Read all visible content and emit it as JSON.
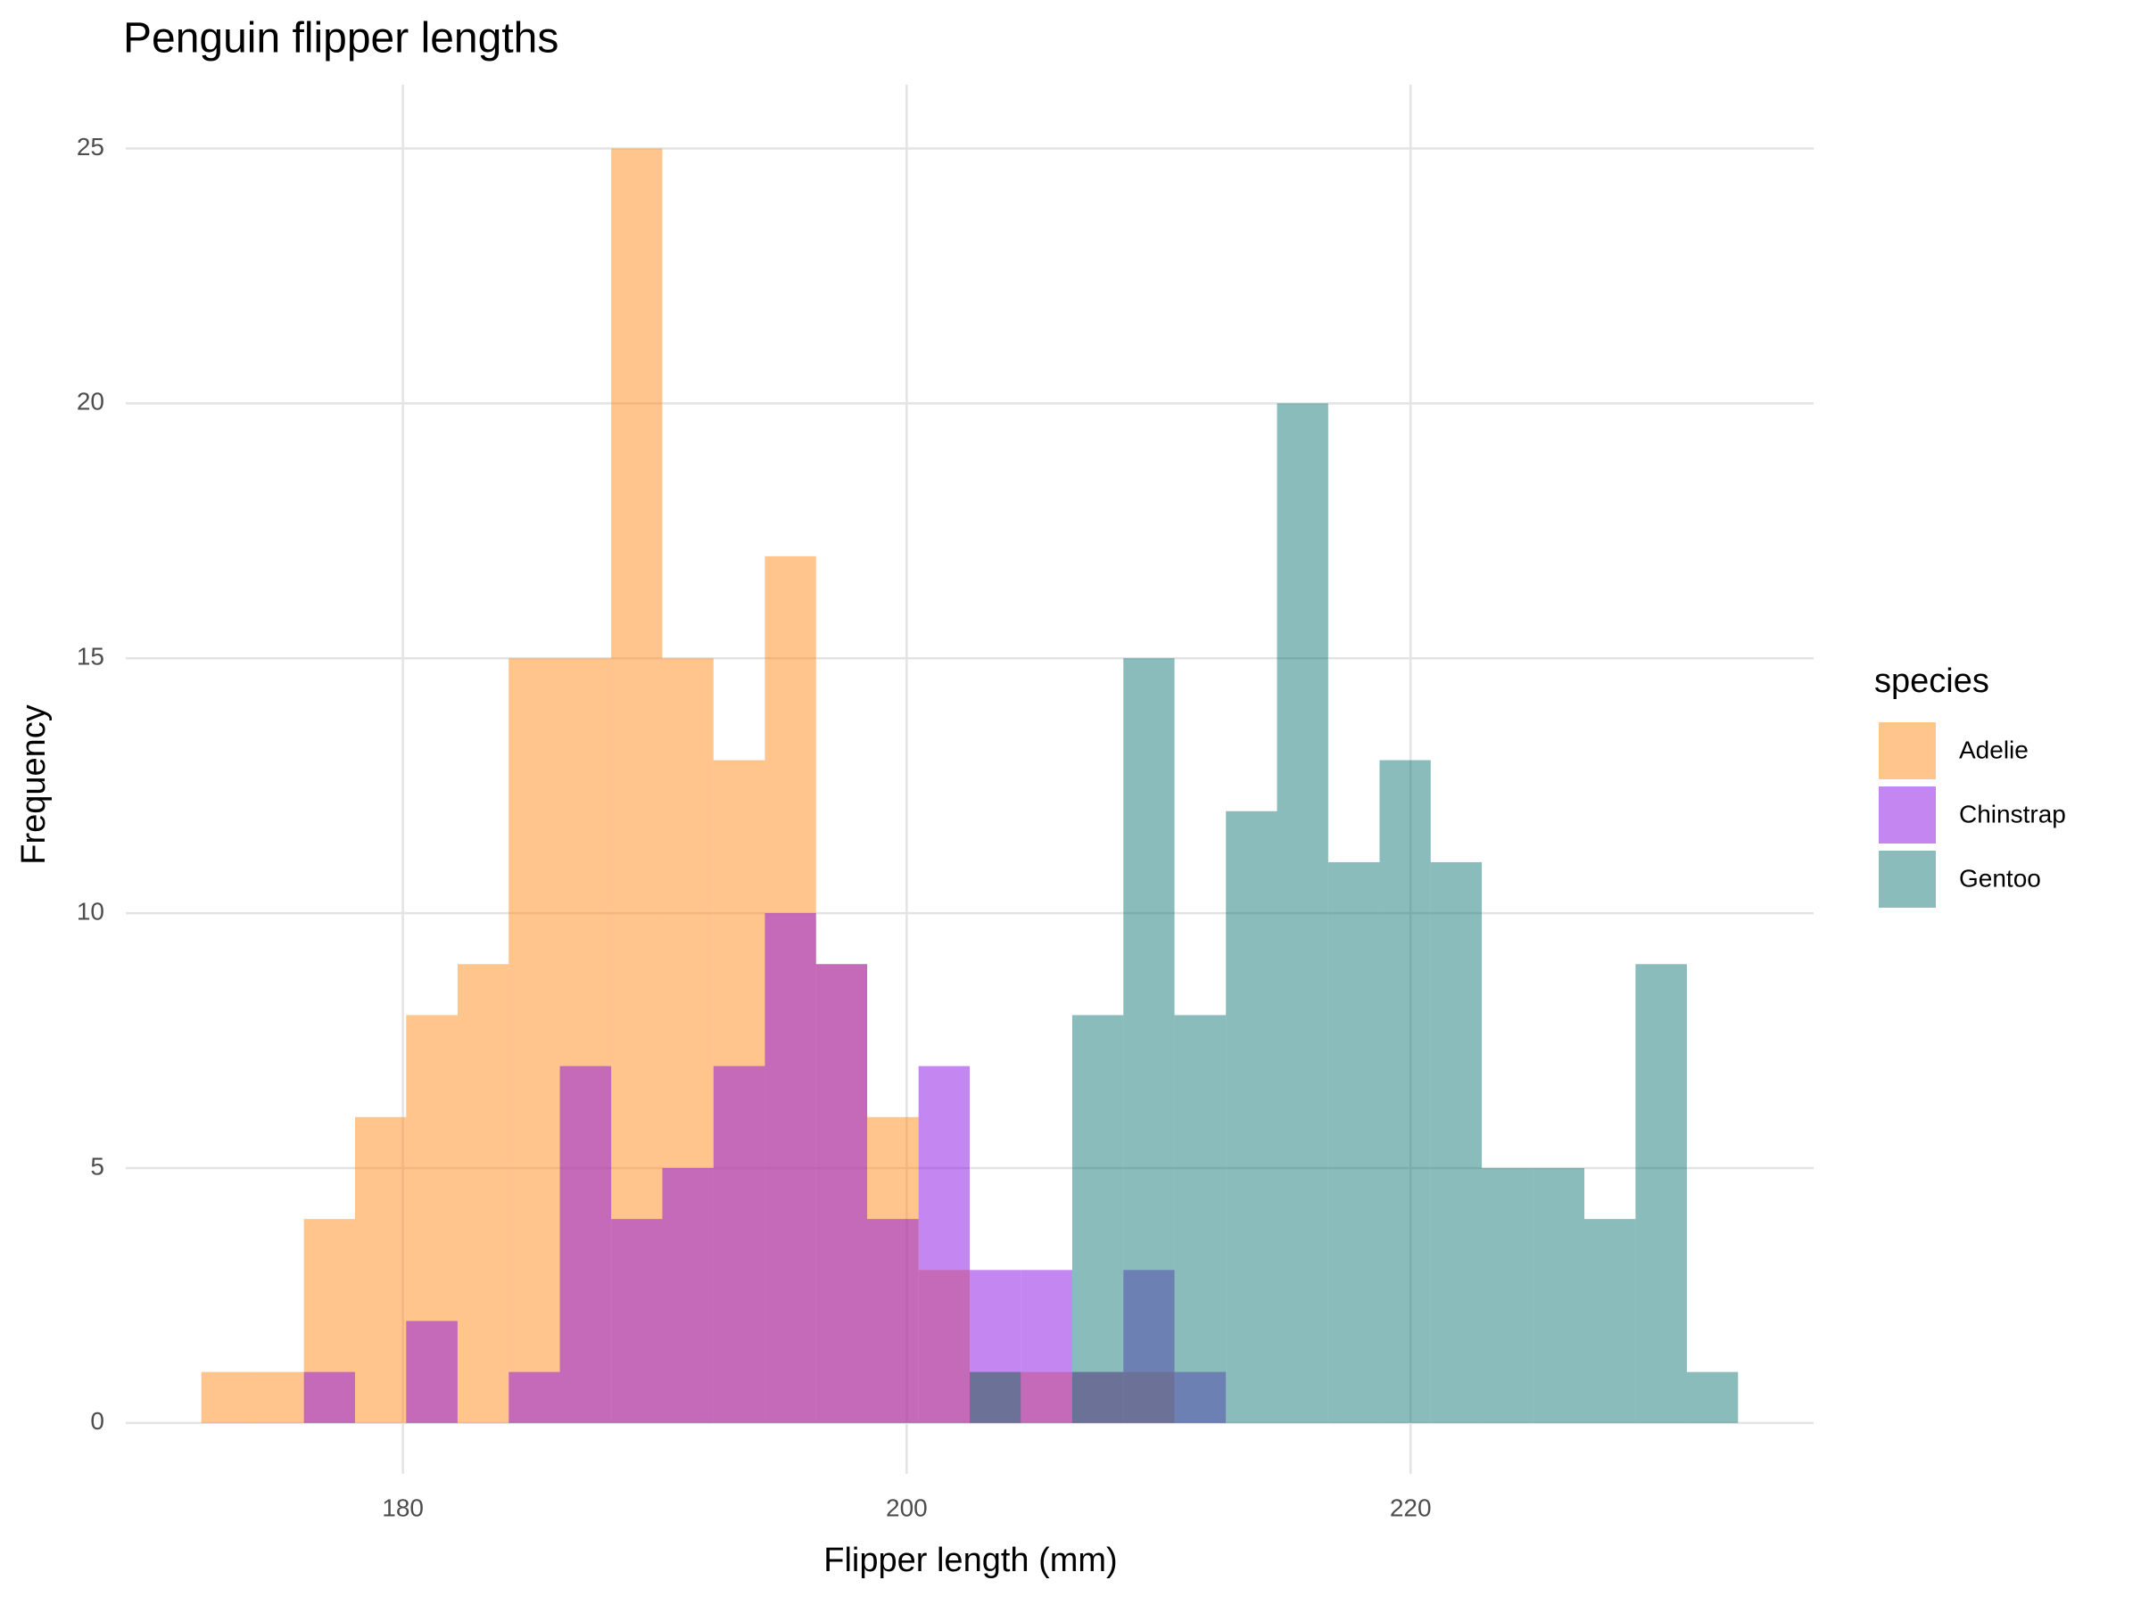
{
  "chart_data": {
    "type": "histogram",
    "title": "Penguin flipper lengths",
    "x_label": "Flipper length (mm)",
    "y_label": "Frequency",
    "legend_title": "species",
    "legend": "right",
    "grid": true,
    "alpha": 0.5,
    "bins": [
      172,
      174.03,
      176.07,
      178.1,
      180.13,
      182.17,
      184.2,
      186.23,
      188.27,
      190.3,
      192.33,
      194.37,
      196.4,
      198.43,
      200.47,
      202.5,
      204.53,
      206.57,
      208.6,
      210.63,
      212.67,
      214.7,
      216.73,
      218.77,
      220.8,
      222.83,
      224.87,
      226.9,
      228.93,
      230.97,
      233
    ],
    "series": [
      {
        "name": "Adelie",
        "color": "#ff8c1a",
        "values": [
          1,
          1,
          4,
          6,
          8,
          9,
          15,
          15,
          25,
          15,
          13,
          17,
          9,
          6,
          3,
          1,
          1,
          1,
          1,
          0,
          0,
          0,
          0,
          0,
          0,
          0,
          0,
          0,
          0,
          0
        ]
      },
      {
        "name": "Chinstrap",
        "color": "#8a10e6",
        "values": [
          0,
          0,
          1,
          0,
          2,
          0,
          1,
          7,
          4,
          5,
          7,
          10,
          9,
          4,
          7,
          3,
          3,
          1,
          3,
          1,
          0,
          0,
          0,
          0,
          0,
          0,
          0,
          0,
          0,
          0
        ]
      },
      {
        "name": "Gentoo",
        "color": "#137a76",
        "values": [
          0,
          0,
          0,
          0,
          0,
          0,
          0,
          0,
          0,
          0,
          0,
          0,
          0,
          0,
          0,
          1,
          0,
          8,
          15,
          8,
          12,
          20,
          11,
          13,
          11,
          5,
          5,
          4,
          9,
          1
        ]
      }
    ],
    "xlim": [
      169,
      236
    ],
    "xticks": [
      180,
      200,
      220
    ],
    "ylim": [
      -1,
      26.25
    ],
    "yticks": [
      0,
      5,
      10,
      15,
      20,
      25
    ]
  }
}
